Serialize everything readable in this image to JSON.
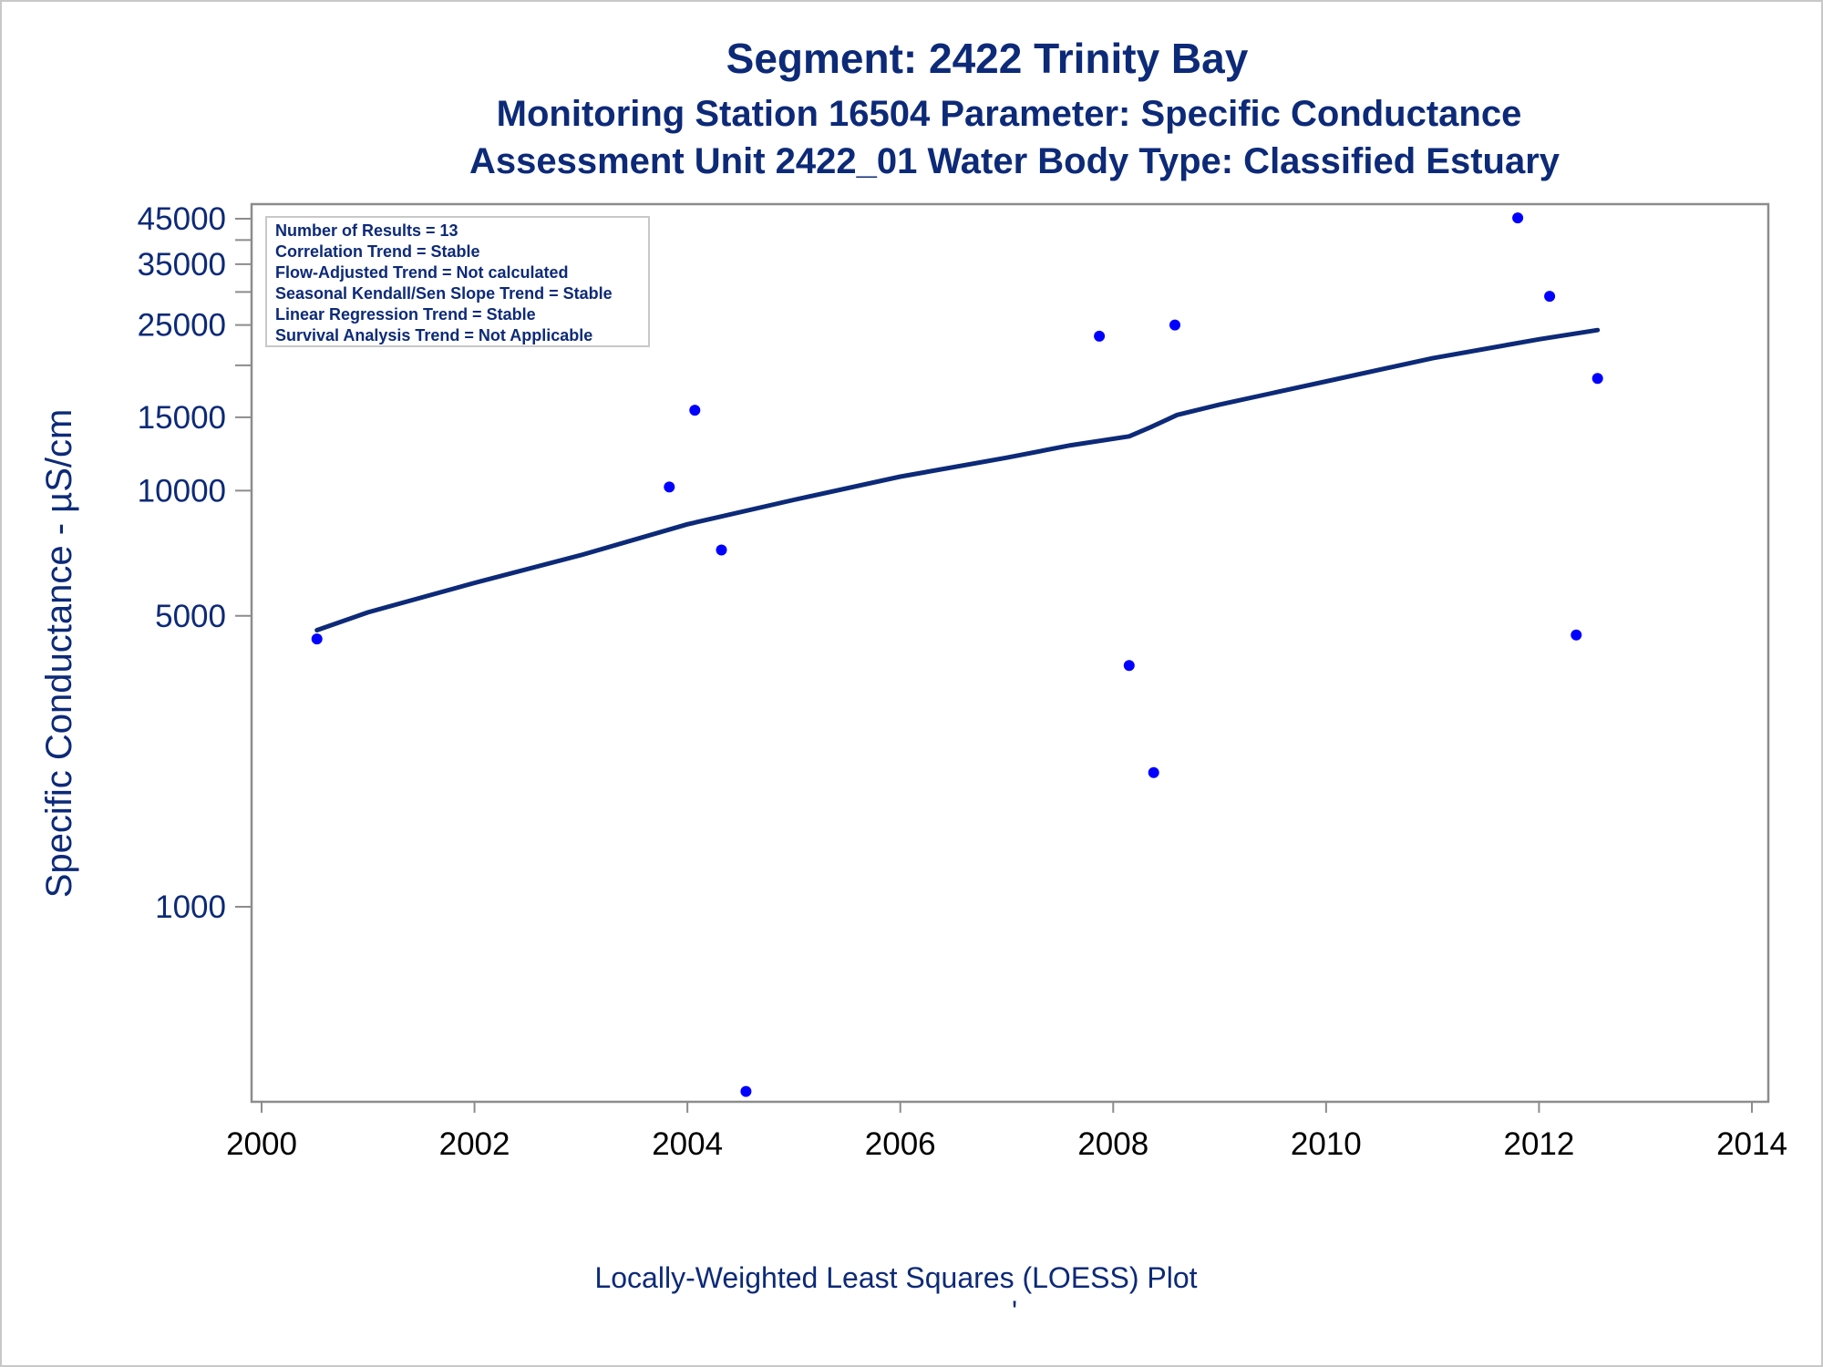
{
  "chart_data": {
    "type": "scatter",
    "title": "Segment: 2422  Trinity Bay",
    "subtitle": "Monitoring Station 16504 Parameter: Specific Conductance",
    "subtitle2": "Assessment Unit 2422_01   Water Body Type: Classified Estuary",
    "ylabel": "Specific Conductance -  µS/cm",
    "footnote": "Locally-Weighted Least Squares (LOESS) Plot",
    "footnote_mark": "'",
    "y_scale": "log",
    "xlim": [
      2000,
      2014
    ],
    "ylim": [
      375,
      47000
    ],
    "x_ticks": [
      2000,
      2002,
      2004,
      2006,
      2008,
      2010,
      2012,
      2014
    ],
    "y_ticks_labeled": [
      1000,
      5000,
      10000,
      15000,
      25000,
      35000,
      45000
    ],
    "y_ticks_minor": [
      20000,
      30000,
      40000
    ],
    "legend": {
      "placement": "top-left",
      "lines": [
        "Number of Results = 13",
        "Correlation Trend = Stable",
        "Flow-Adjusted Trend = Not calculated",
        "Seasonal Kendall/Sen Slope Trend = Stable",
        "Linear Regression Trend = Stable",
        "Survival Analysis Trend = Not Applicable"
      ]
    },
    "series": [
      {
        "kind": "points",
        "color": "#0000ff",
        "points": [
          {
            "x": 2000.52,
            "y": 4400
          },
          {
            "x": 2003.83,
            "y": 10200
          },
          {
            "x": 2004.07,
            "y": 15600
          },
          {
            "x": 2004.32,
            "y": 7200
          },
          {
            "x": 2004.55,
            "y": 360
          },
          {
            "x": 2007.87,
            "y": 23500
          },
          {
            "x": 2008.15,
            "y": 3800
          },
          {
            "x": 2008.38,
            "y": 2100
          },
          {
            "x": 2008.58,
            "y": 25000
          },
          {
            "x": 2011.8,
            "y": 45200
          },
          {
            "x": 2012.1,
            "y": 29300
          },
          {
            "x": 2012.35,
            "y": 4500
          },
          {
            "x": 2012.55,
            "y": 18600
          }
        ]
      },
      {
        "kind": "loess",
        "color": "#0d2a78",
        "points": [
          {
            "x": 2000.52,
            "y": 4620
          },
          {
            "x": 2001.0,
            "y": 5100
          },
          {
            "x": 2002.0,
            "y": 6000
          },
          {
            "x": 2003.0,
            "y": 7000
          },
          {
            "x": 2004.0,
            "y": 8300
          },
          {
            "x": 2005.0,
            "y": 9500
          },
          {
            "x": 2006.0,
            "y": 10800
          },
          {
            "x": 2007.0,
            "y": 12000
          },
          {
            "x": 2007.6,
            "y": 12850
          },
          {
            "x": 2008.15,
            "y": 13500
          },
          {
            "x": 2008.35,
            "y": 14200
          },
          {
            "x": 2008.6,
            "y": 15200
          },
          {
            "x": 2009.0,
            "y": 16100
          },
          {
            "x": 2010.0,
            "y": 18300
          },
          {
            "x": 2011.0,
            "y": 20800
          },
          {
            "x": 2012.0,
            "y": 23100
          },
          {
            "x": 2012.55,
            "y": 24300
          }
        ]
      }
    ]
  }
}
